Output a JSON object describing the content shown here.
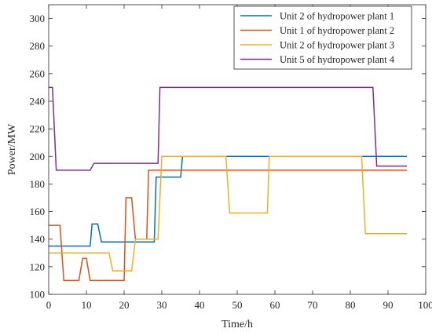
{
  "chart_data": {
    "type": "line",
    "xlabel": "Time/h",
    "ylabel": "Power/MW",
    "xlim": [
      0,
      100
    ],
    "ylim": [
      100,
      310
    ],
    "xticks": [
      0,
      10,
      20,
      30,
      40,
      50,
      60,
      70,
      80,
      90,
      100
    ],
    "yticks": [
      100,
      120,
      140,
      160,
      180,
      200,
      220,
      240,
      260,
      280,
      300
    ],
    "grid": false,
    "legend_position": "top-right",
    "series": [
      {
        "name": "Unit 2 of hydropower plant 1",
        "color": "#0072BD",
        "points": [
          [
            0,
            135
          ],
          [
            10,
            135
          ],
          [
            11,
            135
          ],
          [
            11.5,
            151
          ],
          [
            13,
            151
          ],
          [
            14,
            138
          ],
          [
            27,
            138
          ],
          [
            28,
            138
          ],
          [
            28.5,
            185
          ],
          [
            34,
            185
          ],
          [
            35,
            185
          ],
          [
            35.5,
            200
          ],
          [
            46,
            200
          ],
          [
            47,
            200
          ],
          [
            58,
            200
          ],
          [
            59,
            200
          ],
          [
            83,
            200
          ],
          [
            95,
            200
          ]
        ]
      },
      {
        "name": "Unit 1 of hydropower plant 2",
        "color": "#D95319",
        "points": [
          [
            0,
            150
          ],
          [
            3,
            150
          ],
          [
            4,
            110
          ],
          [
            8,
            110
          ],
          [
            9,
            126
          ],
          [
            10,
            126
          ],
          [
            11,
            110
          ],
          [
            19,
            110
          ],
          [
            20,
            110
          ],
          [
            20.5,
            170
          ],
          [
            22,
            170
          ],
          [
            23,
            140
          ],
          [
            25,
            140
          ],
          [
            26,
            140
          ],
          [
            26.5,
            190
          ],
          [
            95,
            190
          ]
        ]
      },
      {
        "name": "Unit 2 of hydropower plant 3",
        "color": "#EDB120",
        "points": [
          [
            0,
            130
          ],
          [
            16,
            130
          ],
          [
            17,
            117
          ],
          [
            22,
            117
          ],
          [
            23,
            140
          ],
          [
            28,
            140
          ],
          [
            29,
            140
          ],
          [
            30,
            200
          ],
          [
            46,
            200
          ],
          [
            47,
            200
          ],
          [
            48,
            159
          ],
          [
            57,
            159
          ],
          [
            58,
            159
          ],
          [
            58.5,
            200
          ],
          [
            82,
            200
          ],
          [
            83,
            200
          ],
          [
            84,
            144
          ],
          [
            95,
            144
          ]
        ]
      },
      {
        "name": "Unit 5 of hydropower plant 4",
        "color": "#7E2F8E",
        "points": [
          [
            0,
            250
          ],
          [
            1,
            250
          ],
          [
            2,
            190
          ],
          [
            11,
            190
          ],
          [
            12,
            195
          ],
          [
            28,
            195
          ],
          [
            29,
            195
          ],
          [
            29.5,
            250
          ],
          [
            85,
            250
          ],
          [
            86,
            250
          ],
          [
            87,
            193
          ],
          [
            95,
            193
          ]
        ]
      }
    ]
  }
}
